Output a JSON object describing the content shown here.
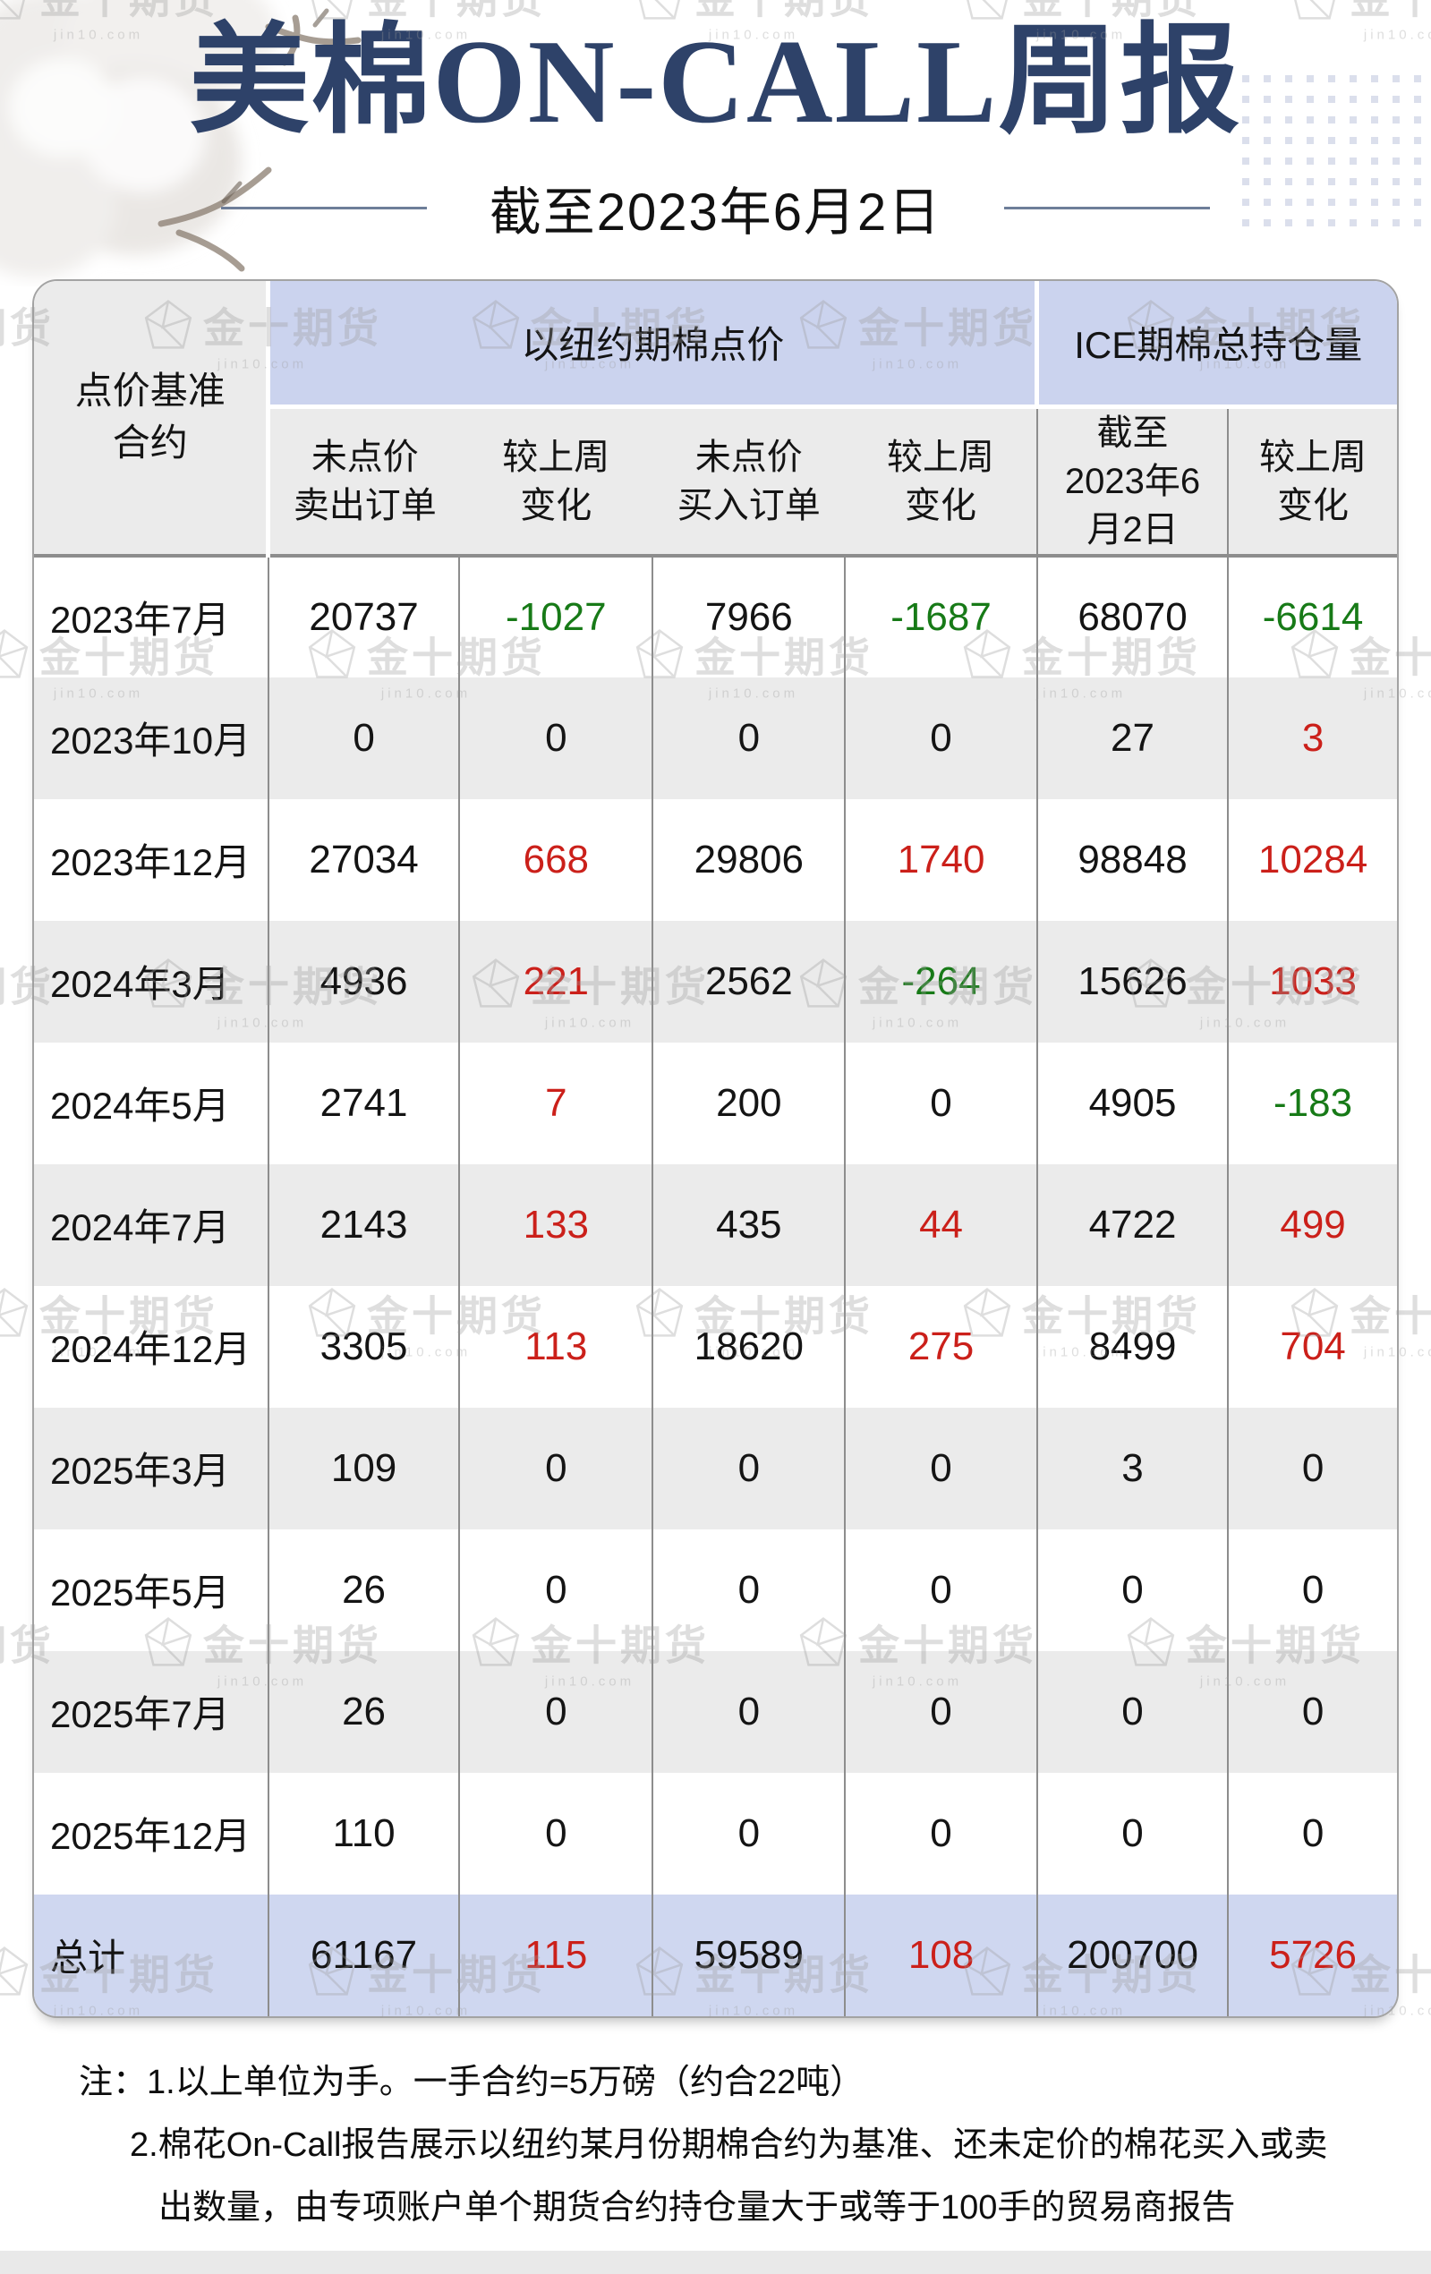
{
  "page": {
    "title": "美棉ON-CALL周报",
    "subtitle": "截至2023年6月2日",
    "watermark": {
      "brand": "金十期货",
      "subtext": "jin10.com"
    },
    "notes": {
      "line1": "注：1.以上单位为手。一手合约=5万磅（约合22吨）",
      "line2": "2.棉花On-Call报告展示以纽约某月份期棉合约为基准、还未定价的棉花买入或卖",
      "line3": "出数量，由专项账户单个期货合约持仓量大于或等于100手的贸易商报告"
    },
    "colors": {
      "title_navy": "#2e4269",
      "header_blue": "#cbd3ee",
      "row_alt_gray": "#ebebeb",
      "total_row_blue": "#cfd7f0",
      "positive_red": "#cb201a",
      "negative_green": "#177a17",
      "grid_line": "#8d8d8d",
      "dot_grid": "#dbdfec",
      "footer_strip": "#e9e9e9"
    }
  },
  "table": {
    "corner_header": "点价基准\n合约",
    "group_headers": [
      "以纽约期棉点价",
      "ICE期棉总持仓量"
    ],
    "sub_headers": [
      "未点价\n卖出订单",
      "较上周\n变化",
      "未点价\n买入订单",
      "较上周\n变化",
      "截至\n2023年6\n月2日",
      "较上周\n变化"
    ],
    "change_col_indexes": [
      1,
      3,
      5
    ],
    "rows": [
      {
        "label": "2023年7月",
        "values": [
          20737,
          -1027,
          7966,
          -1687,
          68070,
          -6614
        ]
      },
      {
        "label": "2023年10月",
        "values": [
          0,
          0,
          0,
          0,
          27,
          3
        ]
      },
      {
        "label": "2023年12月",
        "values": [
          27034,
          668,
          29806,
          1740,
          98848,
          10284
        ]
      },
      {
        "label": "2024年3月",
        "values": [
          4936,
          221,
          2562,
          -264,
          15626,
          1033
        ]
      },
      {
        "label": "2024年5月",
        "values": [
          2741,
          7,
          200,
          0,
          4905,
          -183
        ]
      },
      {
        "label": "2024年7月",
        "values": [
          2143,
          133,
          435,
          44,
          4722,
          499
        ]
      },
      {
        "label": "2024年12月",
        "values": [
          3305,
          113,
          18620,
          275,
          8499,
          704
        ]
      },
      {
        "label": "2025年3月",
        "values": [
          109,
          0,
          0,
          0,
          3,
          0
        ]
      },
      {
        "label": "2025年5月",
        "values": [
          26,
          0,
          0,
          0,
          0,
          0
        ]
      },
      {
        "label": "2025年7月",
        "values": [
          26,
          0,
          0,
          0,
          0,
          0
        ]
      },
      {
        "label": "2025年12月",
        "values": [
          110,
          0,
          0,
          0,
          0,
          0
        ]
      }
    ],
    "total": {
      "label": "总计",
      "values": [
        61167,
        115,
        59589,
        108,
        200700,
        5726
      ]
    }
  }
}
